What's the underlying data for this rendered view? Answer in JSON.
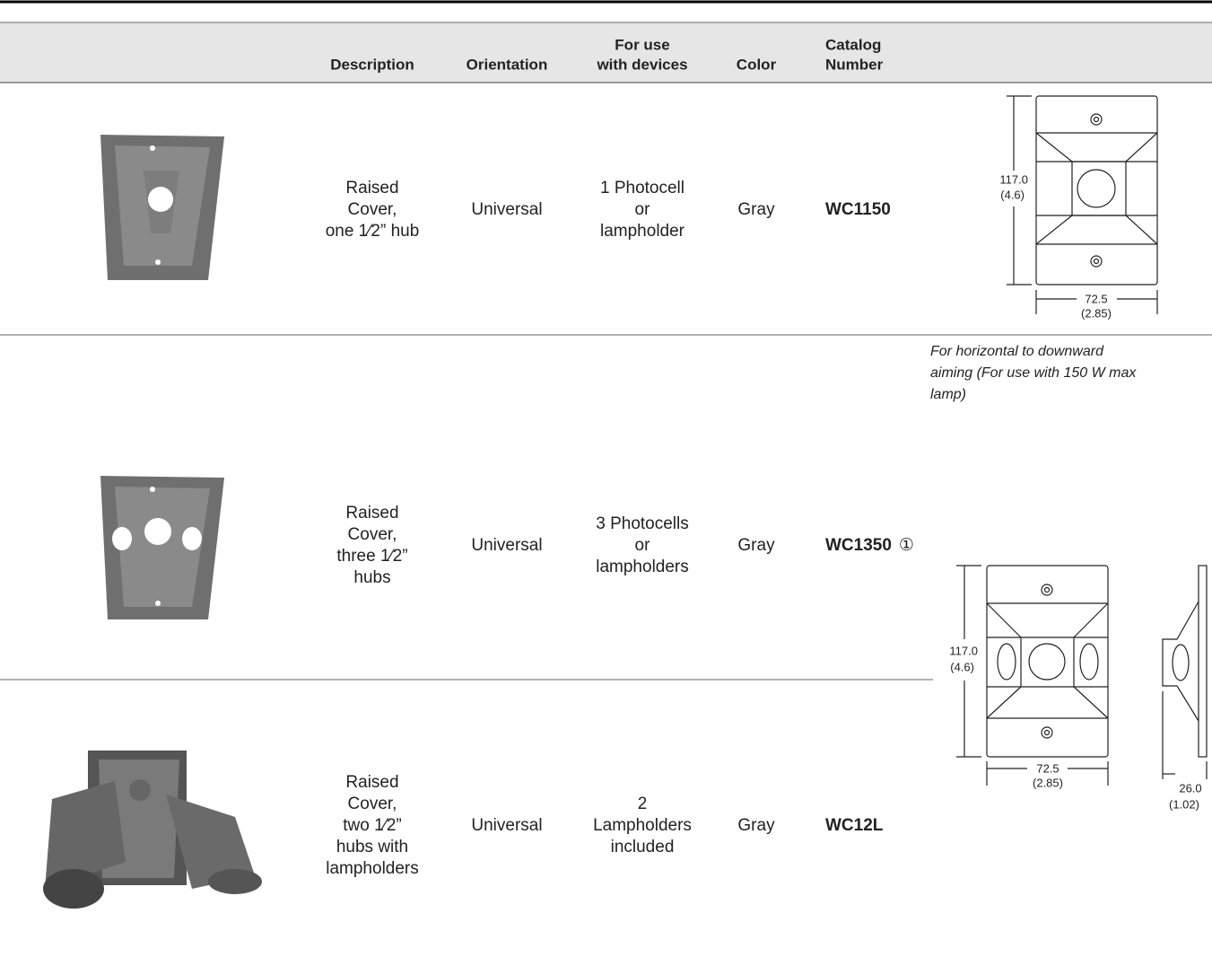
{
  "table": {
    "headers": [
      [
        "Description"
      ],
      [
        "Orientation"
      ],
      [
        "For use",
        "with devices"
      ],
      [
        "Color"
      ],
      [
        "Catalog",
        "Number"
      ]
    ],
    "rows": [
      {
        "description": [
          "Raised",
          "Cover,",
          "one 1⁄2” hub"
        ],
        "orientation": "Universal",
        "devices": [
          "1 Photocell",
          "or",
          "lampholder"
        ],
        "color": "Gray",
        "catalog": "WC1150"
      },
      {
        "description": [
          "Raised",
          "Cover,",
          "three 1⁄2”",
          "hubs"
        ],
        "orientation": "Universal",
        "devices": [
          "3 Photocells",
          "or",
          "lampholders"
        ],
        "color": "Gray",
        "catalog": "WC1350",
        "note_marker": "①"
      },
      {
        "description": [
          "Raised",
          "Cover,",
          "two 1⁄2”",
          "hubs with",
          "lampholders"
        ],
        "orientation": "Universal",
        "devices": [
          "2",
          "Lampholders",
          "included"
        ],
        "color": "Gray",
        "catalog": "WC12L"
      }
    ]
  },
  "note": [
    "For horizontal to downward",
    "aiming (For use with 150 W max",
    "lamp)"
  ],
  "drawings": [
    {
      "height": "117.0",
      "height_in": "(4.6)",
      "width": "72.5",
      "width_in": "(2.85)"
    },
    {
      "height": "117.0",
      "height_in": "(4.6)",
      "width": "72.5",
      "width_in": "(2.85)",
      "depth": "26.0",
      "depth_in": "(1.02)"
    }
  ]
}
